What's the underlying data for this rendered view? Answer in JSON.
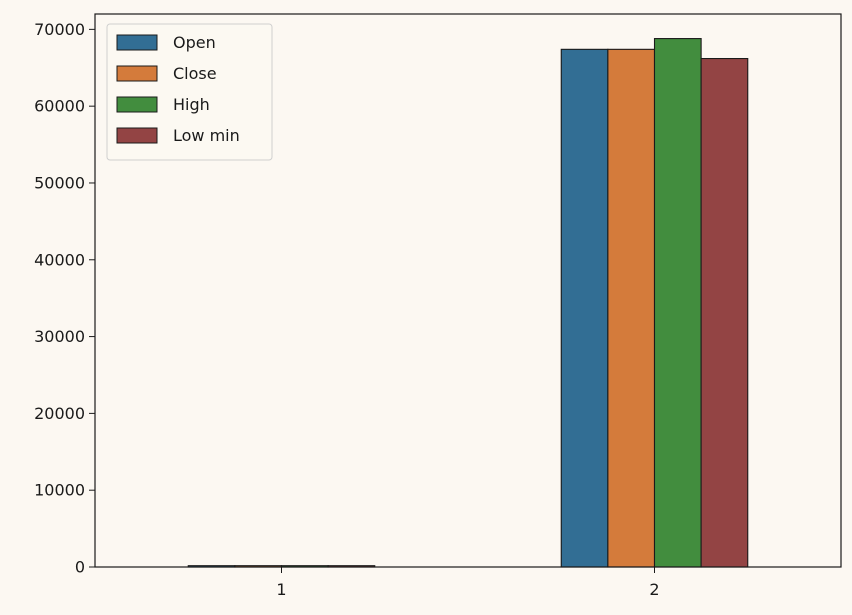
{
  "chart_data": {
    "type": "bar",
    "categories": [
      "1",
      "2"
    ],
    "series": [
      {
        "name": "Open",
        "color": "#326e94",
        "values": [
          170,
          67400
        ]
      },
      {
        "name": "Close",
        "color": "#d47b3b",
        "values": [
          170,
          67400
        ]
      },
      {
        "name": "High",
        "color": "#428d3e",
        "values": [
          170,
          68800
        ]
      },
      {
        "name": "Low min",
        "color": "#934444",
        "values": [
          170,
          66200
        ]
      }
    ],
    "ylim": [
      0,
      72000
    ],
    "yticks": [
      0,
      10000,
      20000,
      30000,
      40000,
      50000,
      60000,
      70000
    ],
    "grid": false,
    "legend_position": "top-left"
  }
}
